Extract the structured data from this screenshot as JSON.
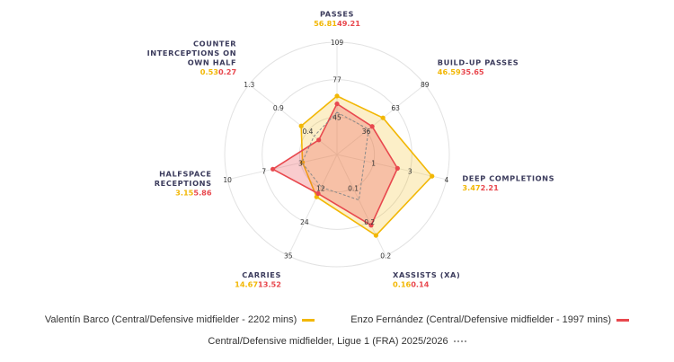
{
  "chart_data": {
    "type": "radar",
    "axes": [
      {
        "name": "PASSES",
        "lines": [
          "PASSES"
        ],
        "ticks": [
          "45",
          "77",
          "109"
        ],
        "max": 109,
        "values": [
          "56.81",
          "49.21"
        ]
      },
      {
        "name": "BUILD-UP PASSES",
        "lines": [
          "BUILD-UP PASSES"
        ],
        "ticks": [
          "36",
          "63",
          "89"
        ],
        "max": 89,
        "values": [
          "46.59",
          "35.65"
        ]
      },
      {
        "name": "DEEP COMPLETIONS",
        "lines": [
          "DEEP COMPLETIONS"
        ],
        "ticks": [
          "1",
          "3",
          "4"
        ],
        "max": 4,
        "values": [
          "3.47",
          "2.21"
        ]
      },
      {
        "name": "XASSISTS (XA)",
        "lines": [
          "XASSISTS (XA)"
        ],
        "ticks": [
          "0.1",
          "0.2",
          "0.2"
        ],
        "max": 0.2,
        "values": [
          "0.16",
          "0.14"
        ]
      },
      {
        "name": "CARRIES",
        "lines": [
          "CARRIES"
        ],
        "ticks": [
          "12",
          "24",
          "35"
        ],
        "max": 35,
        "values": [
          "14.67",
          "13.52"
        ]
      },
      {
        "name": "HALFSPACE RECEPTIONS",
        "lines": [
          "HALFSPACE",
          "RECEPTIONS"
        ],
        "ticks": [
          "3",
          "7",
          "10"
        ],
        "max": 10,
        "values": [
          "3.15",
          "5.86"
        ]
      },
      {
        "name": "COUNTER INTERCEPTIONS ON OWN HALF",
        "lines": [
          "COUNTER",
          "INTERCEPTIONS ON",
          "OWN HALF"
        ],
        "ticks": [
          "0.4",
          "0.9",
          "1.3"
        ],
        "max": 1.3,
        "values": [
          "0.53",
          "0.27"
        ]
      }
    ],
    "series": [
      {
        "name": "Valentín Barco (Central/Defensive midfielder - 2202 mins)",
        "color": "#f2b705",
        "values": [
          56.81,
          46.59,
          3.47,
          0.16,
          14.67,
          3.15,
          0.53
        ]
      },
      {
        "name": "Enzo Fernández (Central/Defensive midfielder - 1997 mins)",
        "color": "#e8484e",
        "values": [
          49.21,
          35.65,
          2.21,
          0.14,
          13.52,
          5.86,
          0.27
        ]
      }
    ],
    "reference": {
      "name": "Central/Defensive midfielder, Ligue 1 (FRA) 2025/2026",
      "color": "#999999",
      "values": [
        41,
        32,
        1.0,
        0.09,
        11.3,
        3.2,
        0.34
      ]
    },
    "grid": true,
    "legend_position": "bottom"
  }
}
